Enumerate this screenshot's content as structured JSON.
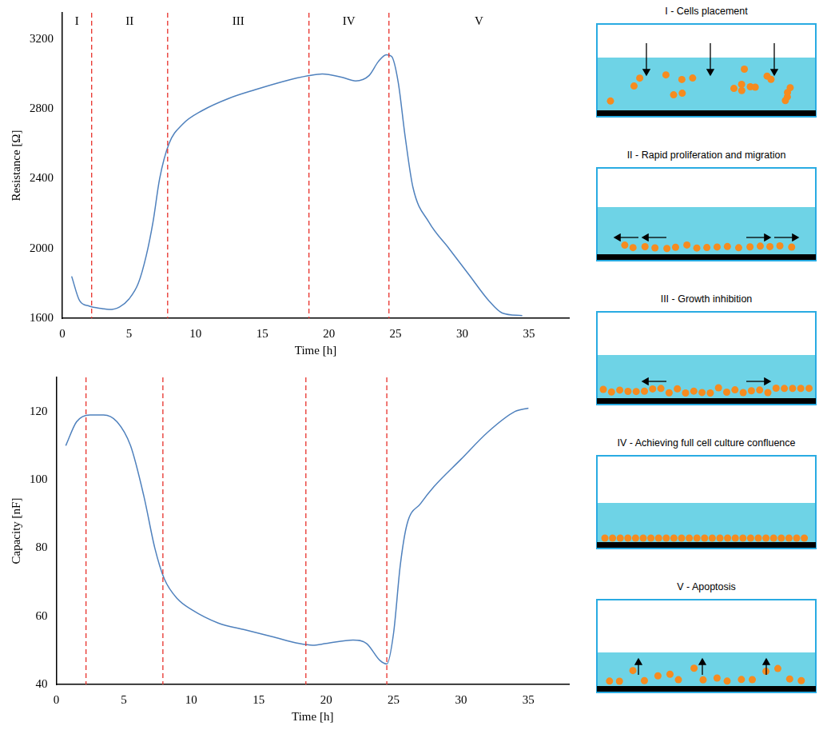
{
  "chart_data": [
    {
      "type": "line",
      "x_label": "Time [h]",
      "y_label": "Resistance [Ω]",
      "xlim": [
        0,
        38
      ],
      "xticks": [
        0,
        5,
        10,
        15,
        20,
        25,
        30,
        35
      ],
      "ylim": [
        1600,
        3350
      ],
      "yticks": [
        1600,
        2000,
        2400,
        2800,
        3200
      ],
      "grid": false,
      "color": "#4f81bd",
      "x": [
        0.7,
        1.3,
        2,
        3,
        3.5,
        4.3,
        5,
        5.7,
        6.3,
        6.8,
        7.3,
        8,
        9,
        10.5,
        12.5,
        14.5,
        16.5,
        18.5,
        19.5,
        21,
        22,
        23,
        23.7,
        24.3,
        24.7,
        25.2,
        25.7,
        26.3,
        27.5,
        29,
        30.5,
        32,
        33,
        34.5
      ],
      "values": [
        1840,
        1700,
        1670,
        1655,
        1650,
        1665,
        1710,
        1800,
        1960,
        2150,
        2400,
        2600,
        2710,
        2790,
        2860,
        2910,
        2955,
        2990,
        3000,
        2980,
        2960,
        2990,
        3070,
        3110,
        3100,
        2950,
        2650,
        2350,
        2150,
        2000,
        1850,
        1700,
        1630,
        1615
      ],
      "phase_labels": [
        "I",
        "II",
        "III",
        "IV",
        "V"
      ],
      "phase_boundaries": [
        2.2,
        7.9,
        18.5,
        24.5
      ]
    },
    {
      "type": "line",
      "x_label": "Time [h]",
      "y_label": "Capacity [nF]",
      "xlim": [
        0,
        38
      ],
      "xticks": [
        0,
        5,
        10,
        15,
        20,
        25,
        30,
        35
      ],
      "ylim": [
        40,
        130
      ],
      "yticks": [
        40,
        60,
        80,
        100,
        120
      ],
      "grid": false,
      "color": "#4f81bd",
      "x": [
        0.7,
        1.5,
        2.5,
        3.5,
        4.5,
        5.5,
        6.5,
        7.3,
        8,
        9,
        10,
        12,
        14,
        16,
        18,
        19,
        20,
        22,
        23,
        24,
        24.5,
        25,
        25.5,
        26,
        27,
        28,
        30,
        32,
        34,
        35
      ],
      "values": [
        110,
        117,
        119,
        119,
        117,
        110,
        95,
        80,
        71,
        65,
        62,
        58,
        56,
        54,
        52,
        51.5,
        52,
        53,
        52,
        47,
        46,
        55,
        75,
        87,
        93,
        98,
        106,
        114,
        120,
        121
      ],
      "phase_boundaries": [
        2.2,
        7.9,
        18.5,
        24.5
      ]
    }
  ],
  "diagram": {
    "panels": [
      {
        "title": "I - Cells placement"
      },
      {
        "title": "II - Rapid proliferation and migration"
      },
      {
        "title": "III - Growth inhibition"
      },
      {
        "title": "IV - Achieving full cell culture confluence"
      },
      {
        "title": "V - Apoptosis"
      }
    ]
  }
}
